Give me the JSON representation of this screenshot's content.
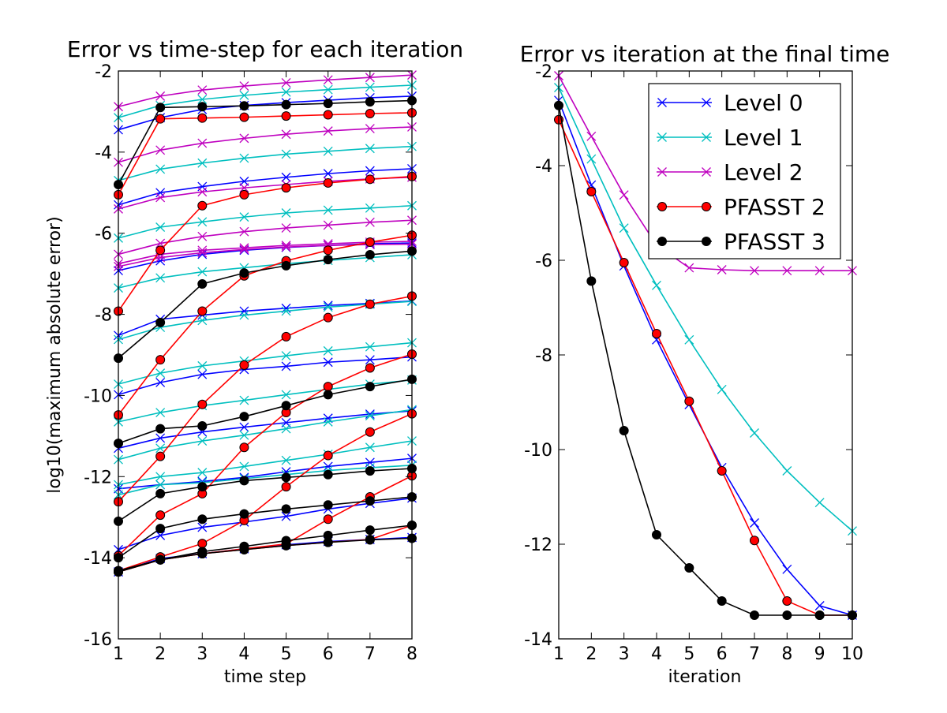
{
  "chart_data": [
    {
      "type": "line",
      "title": "Error vs time-step for each iteration",
      "xlabel": "time step",
      "ylabel": "log10(maximum absolute error)",
      "xlim": [
        1,
        8
      ],
      "ylim": [
        -16,
        -2
      ],
      "xticks": [
        "1",
        "2",
        "3",
        "4",
        "5",
        "6",
        "7",
        "8"
      ],
      "yticks": [
        "-16",
        "-14",
        "-12",
        "-10",
        "-8",
        "-6",
        "-4",
        "-2"
      ],
      "grid": false,
      "x": [
        1,
        2,
        3,
        4,
        5,
        6,
        7,
        8
      ],
      "series": [
        {
          "level": "Level 0",
          "color": "#0000ff",
          "marker": "x",
          "values": [
            -3.45,
            -3.15,
            -2.95,
            -2.85,
            -2.78,
            -2.72,
            -2.66,
            -2.62
          ]
        },
        {
          "level": "Level 0",
          "color": "#0000ff",
          "marker": "x",
          "values": [
            -5.3,
            -5.0,
            -4.85,
            -4.72,
            -4.62,
            -4.53,
            -4.46,
            -4.41
          ]
        },
        {
          "level": "Level 0",
          "color": "#0000ff",
          "marker": "x",
          "values": [
            -6.92,
            -6.68,
            -6.52,
            -6.42,
            -6.35,
            -6.3,
            -6.26,
            -6.24
          ]
        },
        {
          "level": "Level 0",
          "color": "#0000ff",
          "marker": "x",
          "values": [
            -8.52,
            -8.12,
            -8.02,
            -7.92,
            -7.85,
            -7.78,
            -7.73,
            -7.67
          ]
        },
        {
          "level": "Level 0",
          "color": "#0000ff",
          "marker": "x",
          "values": [
            -9.98,
            -9.68,
            -9.48,
            -9.36,
            -9.28,
            -9.18,
            -9.12,
            -9.05
          ]
        },
        {
          "level": "Level 0",
          "color": "#0000ff",
          "marker": "x",
          "values": [
            -11.3,
            -11.05,
            -10.9,
            -10.78,
            -10.67,
            -10.56,
            -10.46,
            -10.38
          ]
        },
        {
          "level": "Level 0",
          "color": "#0000ff",
          "marker": "x",
          "values": [
            -12.3,
            -12.2,
            -12.12,
            -12.02,
            -11.88,
            -11.75,
            -11.65,
            -11.55
          ]
        },
        {
          "level": "Level 0",
          "color": "#0000ff",
          "marker": "x",
          "values": [
            -13.8,
            -13.45,
            -13.25,
            -13.12,
            -12.98,
            -12.8,
            -12.66,
            -12.53
          ]
        },
        {
          "level": "Level 0",
          "color": "#0000ff",
          "marker": "x",
          "values": [
            -14.35,
            -14.02,
            -13.9,
            -13.78,
            -13.68,
            -13.6,
            -13.55,
            -13.5
          ]
        },
        {
          "level": "Level 1",
          "color": "#00bfbf",
          "marker": "x",
          "values": [
            -3.15,
            -2.85,
            -2.7,
            -2.6,
            -2.52,
            -2.46,
            -2.4,
            -2.35
          ]
        },
        {
          "level": "Level 1",
          "color": "#00bfbf",
          "marker": "x",
          "values": [
            -4.7,
            -4.42,
            -4.27,
            -4.15,
            -4.05,
            -3.98,
            -3.91,
            -3.86
          ]
        },
        {
          "level": "Level 1",
          "color": "#00bfbf",
          "marker": "x",
          "values": [
            -6.12,
            -5.85,
            -5.72,
            -5.6,
            -5.5,
            -5.43,
            -5.38,
            -5.32
          ]
        },
        {
          "level": "Level 1",
          "color": "#00bfbf",
          "marker": "x",
          "values": [
            -7.35,
            -7.1,
            -6.95,
            -6.85,
            -6.75,
            -6.67,
            -6.6,
            -6.53
          ]
        },
        {
          "level": "Level 1",
          "color": "#00bfbf",
          "marker": "x",
          "values": [
            -8.62,
            -8.32,
            -8.15,
            -8.02,
            -7.92,
            -7.82,
            -7.75,
            -7.68
          ]
        },
        {
          "level": "Level 1",
          "color": "#00bfbf",
          "marker": "x",
          "values": [
            -9.72,
            -9.45,
            -9.27,
            -9.15,
            -9.02,
            -8.9,
            -8.8,
            -8.7
          ]
        },
        {
          "level": "Level 1",
          "color": "#00bfbf",
          "marker": "x",
          "values": [
            -10.65,
            -10.42,
            -10.25,
            -10.12,
            -9.98,
            -9.85,
            -9.72,
            -9.62
          ]
        },
        {
          "level": "Level 1",
          "color": "#00bfbf",
          "marker": "x",
          "values": [
            -11.58,
            -11.3,
            -11.12,
            -10.98,
            -10.82,
            -10.65,
            -10.5,
            -10.35
          ]
        },
        {
          "level": "Level 1",
          "color": "#00bfbf",
          "marker": "x",
          "values": [
            -12.2,
            -12.0,
            -11.9,
            -11.75,
            -11.6,
            -11.45,
            -11.28,
            -11.12
          ]
        },
        {
          "level": "Level 1",
          "color": "#00bfbf",
          "marker": "x",
          "values": [
            -12.45,
            -12.2,
            -12.15,
            -12.05,
            -11.95,
            -11.85,
            -11.78,
            -11.72
          ]
        },
        {
          "level": "Level 2",
          "color": "#bf00bf",
          "marker": "x",
          "values": [
            -2.88,
            -2.62,
            -2.47,
            -2.37,
            -2.29,
            -2.22,
            -2.16,
            -2.1
          ]
        },
        {
          "level": "Level 2",
          "color": "#bf00bf",
          "marker": "x",
          "values": [
            -4.25,
            -3.95,
            -3.78,
            -3.66,
            -3.56,
            -3.48,
            -3.42,
            -3.38
          ]
        },
        {
          "level": "Level 2",
          "color": "#bf00bf",
          "marker": "x",
          "values": [
            -5.4,
            -5.12,
            -4.98,
            -4.88,
            -4.8,
            -4.72,
            -4.66,
            -4.62
          ]
        },
        {
          "level": "Level 2",
          "color": "#bf00bf",
          "marker": "x",
          "values": [
            -6.52,
            -6.25,
            -6.08,
            -5.96,
            -5.87,
            -5.8,
            -5.73,
            -5.68
          ]
        },
        {
          "level": "Level 2",
          "color": "#bf00bf",
          "marker": "x",
          "values": [
            -6.75,
            -6.52,
            -6.42,
            -6.36,
            -6.3,
            -6.26,
            -6.22,
            -6.2
          ]
        },
        {
          "level": "Level 2",
          "color": "#bf00bf",
          "marker": "x",
          "values": [
            -6.82,
            -6.6,
            -6.48,
            -6.4,
            -6.34,
            -6.3,
            -6.28,
            -6.27
          ]
        },
        {
          "level": "PFASST 2",
          "color": "#ff0000",
          "marker": "o",
          "values": [
            -5.05,
            -3.18,
            -3.16,
            -3.14,
            -3.11,
            -3.08,
            -3.05,
            -3.03
          ]
        },
        {
          "level": "PFASST 2",
          "color": "#ff0000",
          "marker": "o",
          "values": [
            -7.92,
            -6.42,
            -5.32,
            -5.05,
            -4.88,
            -4.76,
            -4.67,
            -4.6
          ]
        },
        {
          "level": "PFASST 2",
          "color": "#ff0000",
          "marker": "o",
          "values": [
            -10.48,
            -9.12,
            -7.92,
            -7.05,
            -6.68,
            -6.42,
            -6.22,
            -6.05
          ]
        },
        {
          "level": "PFASST 2",
          "color": "#ff0000",
          "marker": "o",
          "values": [
            -12.62,
            -11.5,
            -10.22,
            -9.25,
            -8.55,
            -8.08,
            -7.75,
            -7.55
          ]
        },
        {
          "level": "PFASST 2",
          "color": "#ff0000",
          "marker": "o",
          "values": [
            -13.95,
            -12.95,
            -12.42,
            -11.28,
            -10.42,
            -9.78,
            -9.32,
            -8.98
          ]
        },
        {
          "level": "PFASST 2",
          "color": "#ff0000",
          "marker": "o",
          "values": [
            -14.32,
            -13.98,
            -13.65,
            -13.08,
            -12.25,
            -11.48,
            -10.9,
            -10.45
          ]
        },
        {
          "level": "PFASST 2",
          "color": "#ff0000",
          "marker": "o",
          "values": [
            -14.35,
            -14.05,
            -13.9,
            -13.78,
            -13.66,
            -13.05,
            -12.5,
            -11.98
          ]
        },
        {
          "level": "PFASST 2",
          "color": "#ff0000",
          "marker": "o",
          "values": [
            -14.35,
            -14.05,
            -13.9,
            -13.8,
            -13.7,
            -13.62,
            -13.55,
            -13.2
          ]
        },
        {
          "level": "PFASST 3",
          "color": "#000000",
          "marker": "o",
          "values": [
            -4.8,
            -2.9,
            -2.88,
            -2.86,
            -2.83,
            -2.8,
            -2.76,
            -2.73
          ]
        },
        {
          "level": "PFASST 3",
          "color": "#000000",
          "marker": "o",
          "values": [
            -9.08,
            -8.2,
            -7.25,
            -6.98,
            -6.8,
            -6.65,
            -6.53,
            -6.44
          ]
        },
        {
          "level": "PFASST 3",
          "color": "#000000",
          "marker": "o",
          "values": [
            -11.18,
            -10.82,
            -10.75,
            -10.52,
            -10.25,
            -9.98,
            -9.78,
            -9.6
          ]
        },
        {
          "level": "PFASST 3",
          "color": "#000000",
          "marker": "o",
          "values": [
            -13.1,
            -12.42,
            -12.25,
            -12.1,
            -12.02,
            -11.95,
            -11.86,
            -11.8
          ]
        },
        {
          "level": "PFASST 3",
          "color": "#000000",
          "marker": "o",
          "values": [
            -14.0,
            -13.28,
            -13.05,
            -12.92,
            -12.8,
            -12.7,
            -12.6,
            -12.5
          ]
        },
        {
          "level": "PFASST 3",
          "color": "#000000",
          "marker": "o",
          "values": [
            -14.32,
            -14.05,
            -13.85,
            -13.72,
            -13.58,
            -13.45,
            -13.32,
            -13.2
          ]
        },
        {
          "level": "PFASST 3",
          "color": "#000000",
          "marker": "o",
          "values": [
            -14.35,
            -14.05,
            -13.9,
            -13.8,
            -13.7,
            -13.62,
            -13.56,
            -13.52
          ]
        }
      ]
    },
    {
      "type": "line",
      "title": "Error vs iteration at the final time",
      "xlabel": "iteration",
      "ylabel": "",
      "xlim": [
        1,
        10
      ],
      "ylim": [
        -14,
        -2
      ],
      "xticks": [
        "1",
        "2",
        "3",
        "4",
        "5",
        "6",
        "7",
        "8",
        "9",
        "10"
      ],
      "yticks": [
        "-14",
        "-12",
        "-10",
        "-8",
        "-6",
        "-4",
        "-2"
      ],
      "grid": false,
      "legend_position": "top-right",
      "x": [
        1,
        2,
        3,
        4,
        5,
        6,
        7,
        8,
        9,
        10
      ],
      "series": [
        {
          "name": "Level 0",
          "color": "#0000ff",
          "marker": "x",
          "values": [
            -2.62,
            -4.41,
            -6.12,
            -7.68,
            -9.05,
            -10.38,
            -11.55,
            -12.53,
            -13.3,
            -13.5
          ]
        },
        {
          "name": "Level 1",
          "color": "#00bfbf",
          "marker": "x",
          "values": [
            -2.35,
            -3.86,
            -5.32,
            -6.53,
            -7.68,
            -8.73,
            -9.65,
            -10.45,
            -11.12,
            -11.72
          ]
        },
        {
          "name": "Level 2",
          "color": "#bf00bf",
          "marker": "x",
          "values": [
            -2.1,
            -3.38,
            -4.62,
            -5.68,
            -6.16,
            -6.2,
            -6.22,
            -6.22,
            -6.22,
            -6.22
          ]
        },
        {
          "name": "PFASST 2",
          "color": "#ff0000",
          "marker": "o",
          "values": [
            -3.03,
            -4.55,
            -6.05,
            -7.55,
            -8.98,
            -10.45,
            -11.92,
            -13.2,
            -13.5,
            -13.5
          ]
        },
        {
          "name": "PFASST 3",
          "color": "#000000",
          "marker": "o",
          "values": [
            -2.73,
            -6.44,
            -9.6,
            -11.8,
            -12.5,
            -13.2,
            -13.5,
            -13.5,
            -13.5,
            -13.5
          ]
        }
      ]
    }
  ]
}
